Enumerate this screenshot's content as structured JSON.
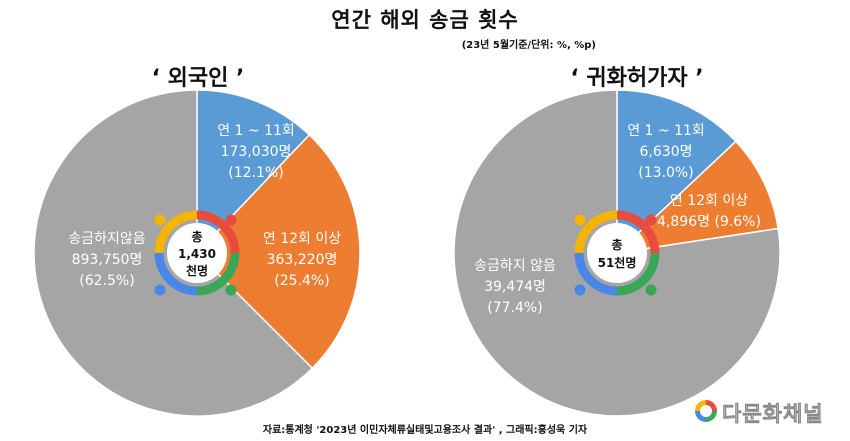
{
  "title": "연간 해외 송금 횟수",
  "unit_note": "(23년 5월기준/단위: %, %p)",
  "source": "자료:통계청 '2023년 이민자체류실태및고용조사 결과' , 그래픽:홍성욱 기자",
  "logo_text": "다문화채널",
  "colors": {
    "blue": "#5b9bd5",
    "orange": "#ed7d31",
    "gray": "#a5a5a5"
  },
  "chart_data": [
    {
      "type": "pie",
      "title": "‘ 외국인 ’",
      "center_label": [
        "총",
        "1,430",
        "천명"
      ],
      "slices": [
        {
          "label": [
            "연 1 ~ 11회",
            "173,030명",
            "(12.1%)"
          ],
          "value": 12.1,
          "color": "#5b9bd5"
        },
        {
          "label": [
            "연 12회 이상",
            "363,220명",
            "(25.4%)"
          ],
          "value": 25.4,
          "color": "#ed7d31"
        },
        {
          "label": [
            "송금하지않음",
            "893,750명",
            "(62.5%)"
          ],
          "value": 62.5,
          "color": "#a5a5a5"
        }
      ]
    },
    {
      "type": "pie",
      "title": "‘ 귀화허가자 ’",
      "center_label": [
        "총",
        "51천명"
      ],
      "slices": [
        {
          "label": [
            "연 1 ~ 11회",
            "6,630명",
            "(13.0%)"
          ],
          "value": 13.0,
          "color": "#5b9bd5"
        },
        {
          "label": [
            "연 12회 이상",
            "4,896명 (9.6%)"
          ],
          "value": 9.6,
          "color": "#ed7d31"
        },
        {
          "label": [
            "송금하지 않음",
            "39,474명",
            "(77.4%)"
          ],
          "value": 77.4,
          "color": "#a5a5a5"
        }
      ]
    }
  ]
}
